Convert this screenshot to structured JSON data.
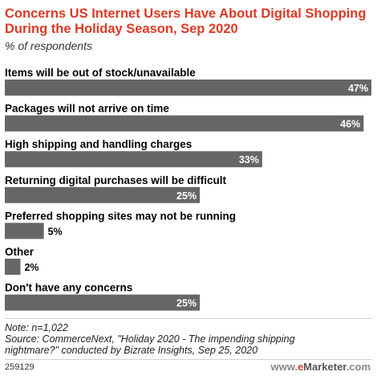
{
  "colors": {
    "title": "#dc3a25",
    "bar": "#666666",
    "label_inside": "#ffffff",
    "label_outside": "#000000"
  },
  "chart_data": {
    "type": "bar",
    "orientation": "horizontal",
    "title": "Concerns US Internet Users Have About Digital Shopping During the Holiday Season, Sep 2020",
    "subtitle": "% of respondents",
    "categories": [
      "Items will be out of stock/unavailable",
      "Packages will not arrive on time",
      "High shipping and handling charges",
      "Returning digital purchases will be difficult",
      "Preferred shopping sites may not be running",
      "Other",
      "Don't have any concerns"
    ],
    "values": [
      47,
      46,
      33,
      25,
      5,
      2,
      25
    ],
    "value_labels": [
      "47%",
      "46%",
      "33%",
      "25%",
      "5%",
      "2%",
      "25%"
    ],
    "xlim": [
      0,
      47
    ],
    "grid": false,
    "legend": "none"
  },
  "notes": {
    "note": "Note: n=1,022",
    "source_line1": "Source: CommerceNext, \"Holiday 2020 - The impending shipping",
    "source_line2": "nightmare?\" conducted by Bizrate Insights, Sep 25, 2020"
  },
  "footer": {
    "chart_id": "259129",
    "brand_www": "www.",
    "brand_e": "e",
    "brand_name": "Marketer",
    "brand_tld": ".com"
  }
}
